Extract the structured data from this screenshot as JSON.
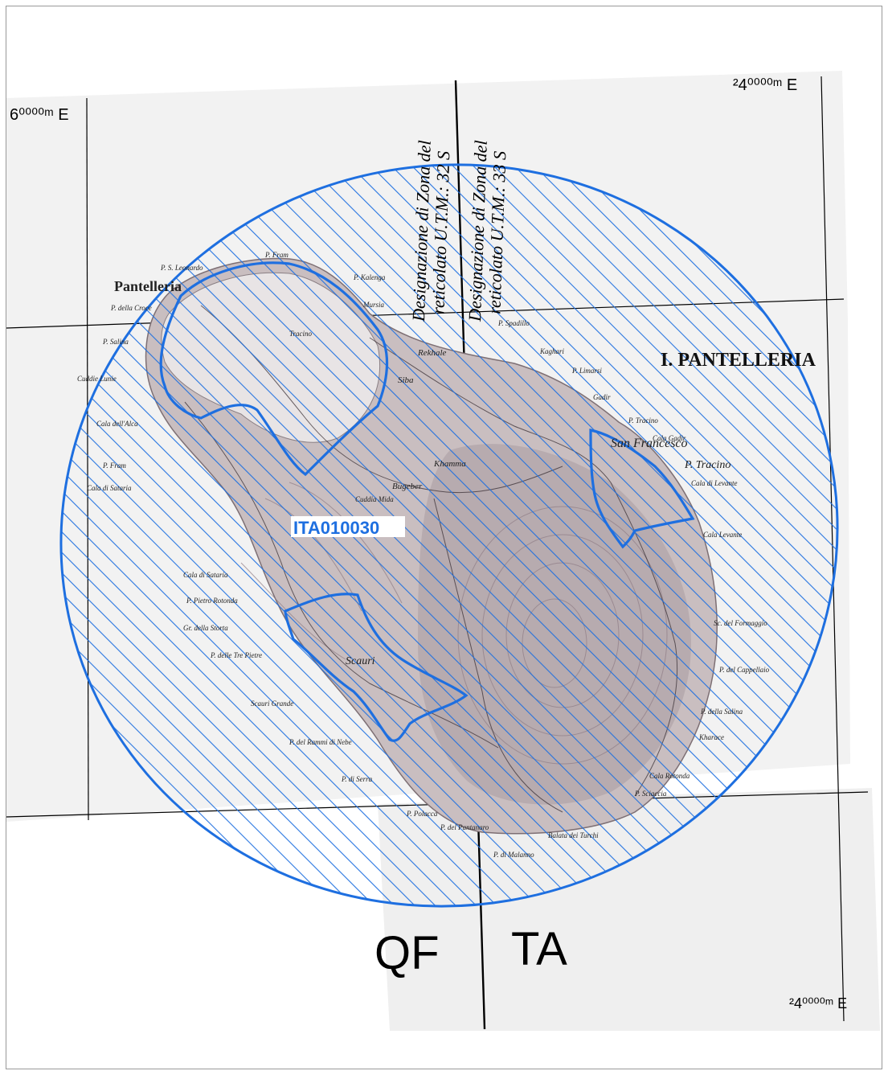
{
  "map": {
    "grid_labels": {
      "top_left": "6⁰⁰⁰⁰ᵐ E",
      "top_right": "²4⁰⁰⁰⁰ᵐ E",
      "bottom_right": "²4⁰⁰⁰⁰ᵐ E"
    },
    "zone_designation_left": [
      "Designazione di Zona del",
      "reticolato U.T.M.: 32 S"
    ],
    "zone_designation_right": [
      "Designazione di Zona del",
      "reticolato U.T.M.: 33 S"
    ],
    "grid_square_labels": [
      "QF",
      "TA"
    ],
    "island_title": "I. PANTELLERIA",
    "site_code": "ITA010030",
    "place_names": [
      "Pantelleria",
      "P. S. Leonardo",
      "P. Fram",
      "P. Kalenga",
      "P. della Croce",
      "P. Salina",
      "Cuddie Lunie",
      "Cala dell'Alca",
      "P. Fram",
      "Cala di Sataria",
      "Cala di Sataria",
      "P. Pietro Rotonda",
      "Gr. della Storta",
      "P. delle Tre Pietre",
      "Scauri",
      "Scauri Grande",
      "P. del Rammi di Nebe",
      "P. di Serra",
      "P. Polacca",
      "P. del Pantanaro",
      "Balata dei Turchi",
      "P. di Malanno",
      "P. Tracino",
      "Cala di Levante",
      "P. Spadillo",
      "Gadir",
      "P. Limarsi",
      "Kaghari",
      "San Francesco",
      "P. Tracino",
      "Cala Gadir",
      "Sc. del Formaggio",
      "P. del Cappellaio",
      "P. della Salina",
      "Kharace",
      "Cala Rotonda",
      "P. Sciaccia",
      "Cala Levante",
      "Cuddia Mida",
      "Khamma",
      "Bugeber",
      "Siba",
      "Rekhale",
      "Tracino",
      "Mursia"
    ]
  },
  "colors": {
    "boundary": "#1e6fe0",
    "grid": "#000000",
    "sheet": "#f2f2f2",
    "terrain": "#b7a9a9",
    "terrain_dark": "#8c7f86",
    "site_label": "#1e6fe0"
  }
}
